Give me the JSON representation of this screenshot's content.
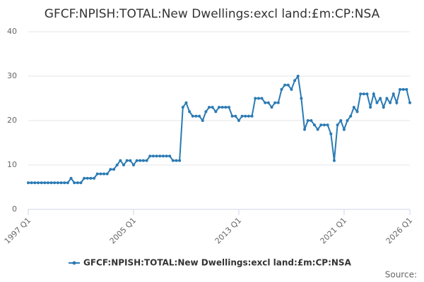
{
  "chart_data": {
    "type": "line",
    "title": "GFCF:NPISH:TOTAL:New Dwellings:excl land:£m:CP:NSA",
    "source": "Source:",
    "categories": [
      "1997 Q1",
      null,
      null,
      null,
      null,
      null,
      null,
      null,
      null,
      null,
      null,
      null,
      null,
      null,
      null,
      null,
      null,
      null,
      null,
      null,
      null,
      null,
      null,
      null,
      null,
      null,
      null,
      null,
      null,
      null,
      null,
      null,
      "2005 Q1",
      null,
      null,
      null,
      null,
      null,
      null,
      null,
      null,
      null,
      null,
      null,
      null,
      null,
      null,
      null,
      null,
      null,
      null,
      null,
      null,
      null,
      null,
      null,
      null,
      null,
      null,
      null,
      null,
      null,
      null,
      null,
      "2013 Q1",
      null,
      null,
      null,
      null,
      null,
      null,
      null,
      null,
      null,
      null,
      null,
      null,
      null,
      null,
      null,
      null,
      null,
      null,
      null,
      null,
      null,
      null,
      null,
      null,
      null,
      null,
      null,
      null,
      null,
      null,
      null,
      "2021 Q1",
      null,
      null,
      null,
      null,
      null,
      null,
      null,
      null,
      null,
      null,
      null,
      null,
      null,
      null,
      null,
      null,
      null,
      null,
      null,
      "2026 Q1"
    ],
    "series": [
      {
        "name": "GFCF:NPISH:TOTAL:New Dwellings:excl land:£m:CP:NSA",
        "color": "#2a7ab4",
        "values": [
          6,
          6,
          6,
          6,
          6,
          6,
          6,
          6,
          6,
          6,
          6,
          6,
          6,
          7,
          6,
          6,
          6,
          7,
          7,
          7,
          7,
          8,
          8,
          8,
          8,
          9,
          9,
          10,
          11,
          10,
          11,
          11,
          10,
          11,
          11,
          11,
          11,
          12,
          12,
          12,
          12,
          12,
          12,
          12,
          11,
          11,
          11,
          23,
          24,
          22,
          21,
          21,
          21,
          20,
          22,
          23,
          23,
          22,
          23,
          23,
          23,
          23,
          21,
          21,
          20,
          21,
          21,
          21,
          21,
          25,
          25,
          25,
          24,
          24,
          23,
          24,
          24,
          27,
          28,
          28,
          27,
          29,
          30,
          25,
          18,
          20,
          20,
          19,
          18,
          19,
          19,
          19,
          17,
          11,
          19,
          20,
          18,
          20,
          21,
          23,
          22,
          26,
          26,
          26,
          23,
          26,
          24,
          25,
          23,
          25,
          24,
          26,
          24,
          27,
          27,
          27,
          24
        ]
      }
    ],
    "ylim": [
      0,
      40
    ],
    "yticks": [
      0,
      10,
      20,
      30,
      40
    ],
    "grid": true
  }
}
